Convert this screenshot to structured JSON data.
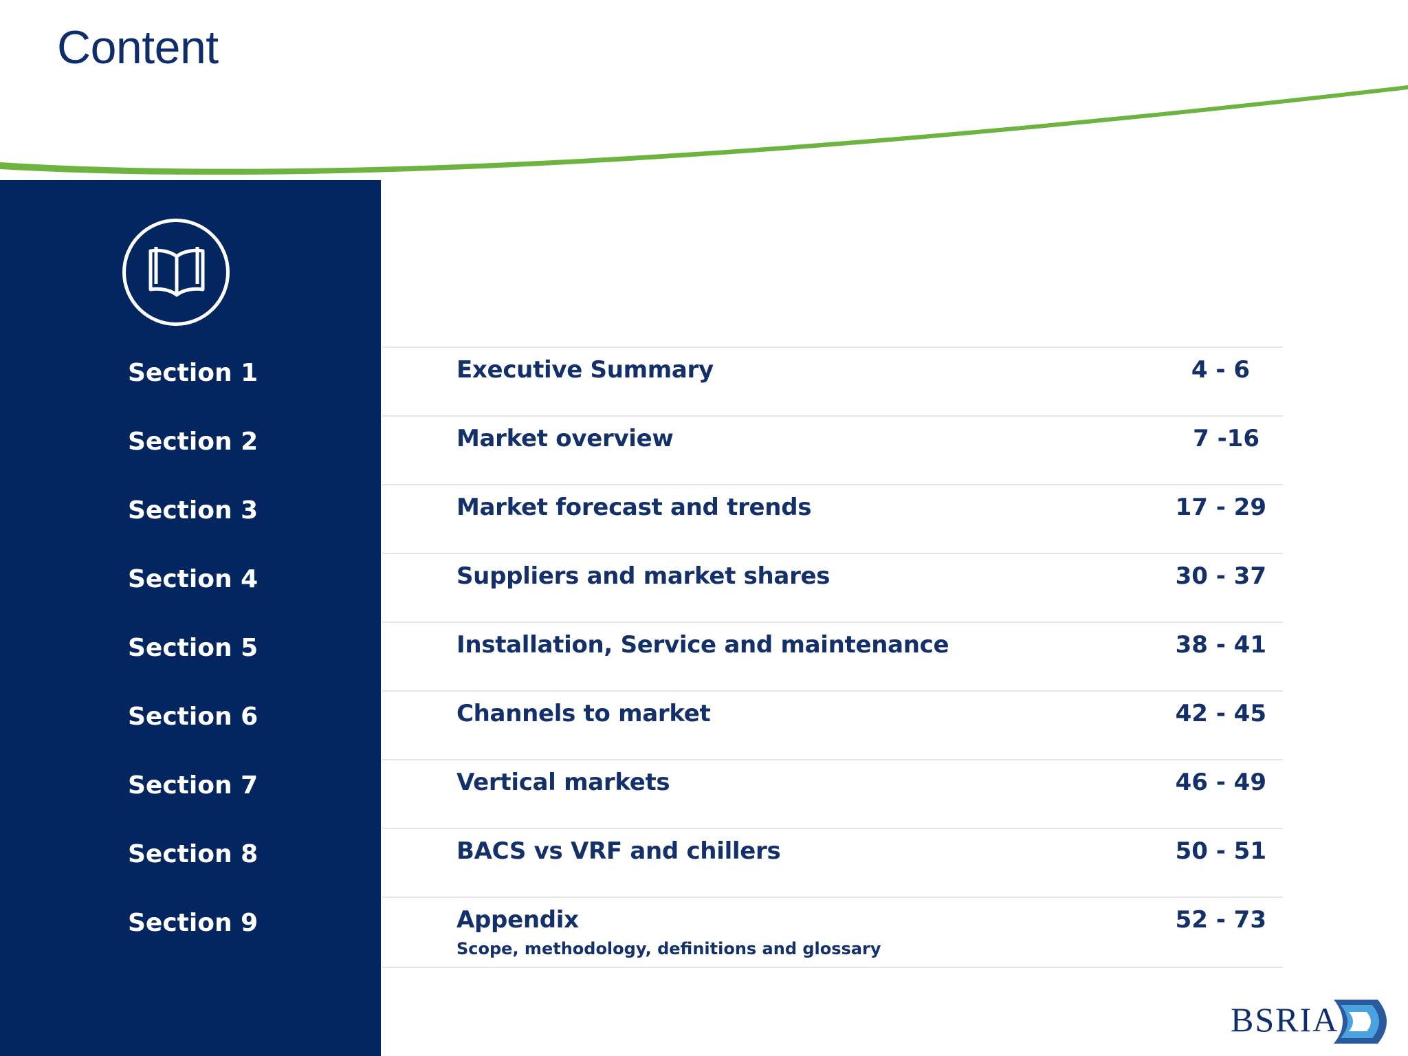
{
  "page": {
    "title": "Content"
  },
  "icons": {
    "book": "book-open-icon",
    "logo": "bsria-logo"
  },
  "colors": {
    "navy": "#032661",
    "green": "#6cb33f",
    "text": "#14306a"
  },
  "sections": [
    {
      "label": "Section 1",
      "title": "Executive Summary",
      "pages": "4 - 6"
    },
    {
      "label": "Section 2",
      "title": "Market overview",
      "pages": "7 -16"
    },
    {
      "label": "Section 3",
      "title": "Market forecast and trends",
      "pages": "17 - 29"
    },
    {
      "label": "Section 4",
      "title": "Suppliers and market shares",
      "pages": "30 - 37"
    },
    {
      "label": "Section 5",
      "title": "Installation, Service and maintenance",
      "pages": "38 - 41"
    },
    {
      "label": "Section 6",
      "title": "Channels to market",
      "pages": "42 - 45"
    },
    {
      "label": "Section 7",
      "title": "Vertical markets",
      "pages": "46 - 49"
    },
    {
      "label": "Section 8",
      "title": "BACS vs VRF and chillers",
      "pages": "50 - 51"
    },
    {
      "label": "Section 9",
      "title": "Appendix",
      "subtitle": "Scope, methodology, definitions and glossary",
      "pages": "52 - 73"
    }
  ],
  "logo": {
    "text": "BSRIA"
  }
}
